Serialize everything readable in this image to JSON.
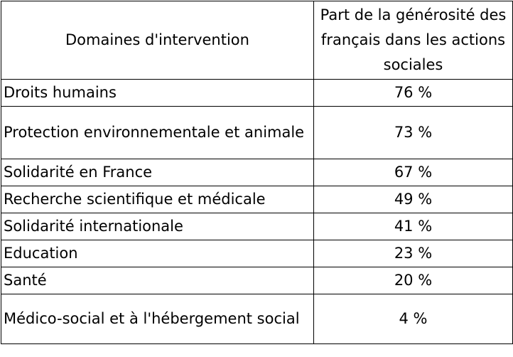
{
  "table": {
    "headers": [
      "Domaines d'intervention",
      "Part de la générosité des français dans les actions sociales"
    ],
    "rows": [
      {
        "domain": "Droits humains",
        "share": "76 %"
      },
      {
        "domain": "Protection environnementale et animale",
        "share": "73 %"
      },
      {
        "domain": "Solidarité en France",
        "share": "67 %"
      },
      {
        "domain": "Recherche scientifique et médicale",
        "share": "49 %"
      },
      {
        "domain": "Solidarité internationale",
        "share": "41 %"
      },
      {
        "domain": "Education",
        "share": "23 %"
      },
      {
        "domain": "Santé",
        "share": "20 %"
      },
      {
        "domain": "Médico-social et à l'hébergement social",
        "share": "4 %"
      }
    ]
  }
}
